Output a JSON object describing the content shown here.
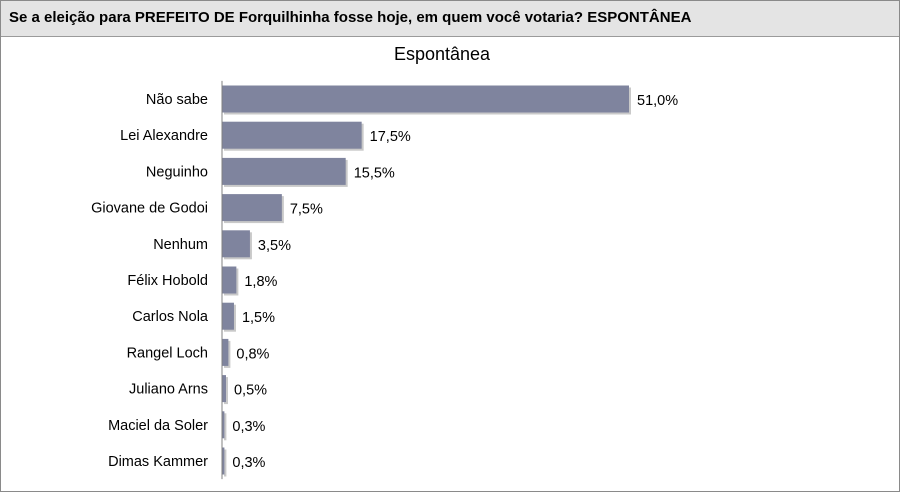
{
  "question": "Se a eleição para PREFEITO DE Forquilhinha fosse hoje, em quem você votaria? ESPONTÂNEA",
  "colors": {
    "bar": "#7f849e",
    "bar_shadow": "#c9c9c9",
    "axis": "#808080"
  },
  "chart_data": {
    "type": "bar",
    "orientation": "horizontal",
    "title": "Espontânea",
    "categories": [
      "Não sabe",
      "Lei Alexandre",
      "Neguinho",
      "Giovane de Godoi",
      "Nenhum",
      "Félix Hobold",
      "Carlos Nola",
      "Rangel Loch",
      "Juliano Arns",
      "Maciel da Soler",
      "Dimas Kammer"
    ],
    "values": [
      51.0,
      17.5,
      15.5,
      7.5,
      3.5,
      1.8,
      1.5,
      0.8,
      0.5,
      0.3,
      0.3
    ],
    "value_labels": [
      "51,0%",
      "17,5%",
      "15,5%",
      "7,5%",
      "3,5%",
      "1,8%",
      "1,5%",
      "0,8%",
      "0,5%",
      "0,3%",
      "0,3%"
    ],
    "unit": "%",
    "xlim": [
      0,
      51.0
    ],
    "grid": false,
    "legend": "none"
  }
}
